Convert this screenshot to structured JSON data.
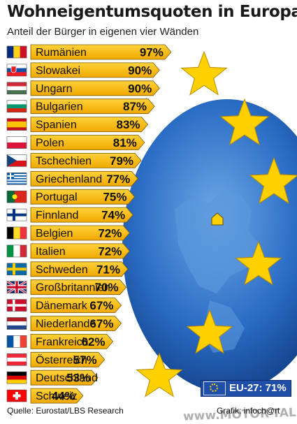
{
  "title": "Wohneigentumsquoten in Europa",
  "subtitle": "Anteil der Bürger in eigenen vier Wänden",
  "eu_average": "EU-27: 71%",
  "source": "Quelle: Eurostat/LBS Research",
  "credit": "Grafik: infoch@rt",
  "watermark": "www.MOTOR-TALK.de",
  "colors": {
    "bar": "#f5b800",
    "bar_edge": "#7a5a00",
    "globe": "#1f5fb8",
    "star": "#ffd000",
    "eu_box": "#1f4fa8"
  },
  "chart_data": {
    "type": "bar",
    "orientation": "horizontal",
    "title": "Wohneigentumsquoten in Europa",
    "subtitle": "Anteil der Bürger in eigenen vier Wänden",
    "unit": "%",
    "categories": [
      "Rumänien",
      "Slowakei",
      "Ungarn",
      "Bulgarien",
      "Spanien",
      "Polen",
      "Tschechien",
      "Griechenland",
      "Portugal",
      "Finnland",
      "Belgien",
      "Italien",
      "Schweden",
      "Großbritannien",
      "Dänemark",
      "Niederlande",
      "Frankreich",
      "Österreich",
      "Deutschland",
      "Schweiz"
    ],
    "values": [
      97,
      90,
      90,
      87,
      83,
      81,
      79,
      77,
      75,
      74,
      72,
      72,
      71,
      70,
      67,
      67,
      62,
      57,
      53,
      44
    ],
    "value_labels": [
      "97%",
      "90%",
      "90%",
      "87%",
      "83%",
      "81%",
      "79%",
      "77%",
      "75%",
      "74%",
      "72%",
      "72%",
      "71%",
      "70%",
      "67%",
      "67%",
      "62%",
      "57%",
      "53%",
      "44%"
    ],
    "flags": [
      "flag-romania",
      "flag-slovakia",
      "flag-hungary",
      "flag-bulgaria",
      "flag-spain",
      "flag-poland",
      "flag-czechia",
      "flag-greece",
      "flag-portugal",
      "flag-finland",
      "flag-belgium",
      "flag-italy",
      "flag-sweden",
      "flag-uk",
      "flag-denmark",
      "flag-netherlands",
      "flag-france",
      "flag-austria",
      "flag-germany",
      "flag-switzerland"
    ],
    "reference": {
      "label": "EU-27",
      "value": 71
    },
    "grid": false,
    "legend": "none"
  }
}
